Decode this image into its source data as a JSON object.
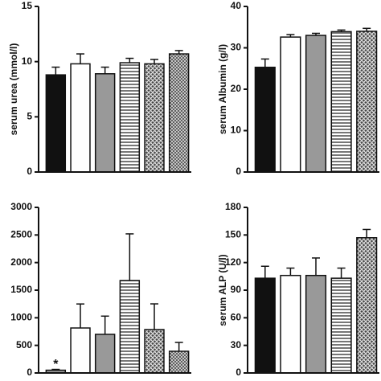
{
  "chart_data": [
    {
      "type": "bar",
      "ylabel": "serum urea (mmol/l)",
      "categories": [
        null,
        null,
        null,
        null,
        null,
        null
      ],
      "values": [
        8.8,
        9.8,
        8.9,
        9.9,
        9.8,
        10.7
      ],
      "errors": [
        0.7,
        0.9,
        0.6,
        0.4,
        0.4,
        0.3
      ],
      "colors": [
        "black",
        "white",
        "gray",
        "hatch-horizontal",
        "hatch-cross",
        "hatch-fine"
      ],
      "ylim": [
        0,
        15
      ],
      "yticks": [
        0,
        5,
        10,
        15
      ]
    },
    {
      "type": "bar",
      "ylabel": "serum Albumin (g/l)",
      "categories": [
        null,
        null,
        null,
        null,
        null
      ],
      "values": [
        25.3,
        32.6,
        33.0,
        33.9,
        34.0
      ],
      "errors": [
        2.0,
        0.6,
        0.5,
        0.4,
        0.7
      ],
      "colors": [
        "black",
        "white",
        "gray",
        "hatch-horizontal",
        "hatch-cross"
      ],
      "ylim": [
        0,
        40
      ],
      "yticks": [
        0,
        10,
        20,
        30,
        40
      ]
    },
    {
      "type": "bar",
      "categories": [
        null,
        null,
        null,
        null,
        null,
        null
      ],
      "values": [
        50,
        815,
        700,
        1675,
        786,
        393
      ],
      "errors": [
        15,
        435,
        330,
        845,
        466,
        160
      ],
      "colors": [
        "gray",
        "white",
        "gray",
        "hatch-horizontal",
        "hatch-cross",
        "hatch-fine"
      ],
      "annotation": "*",
      "ylim": [
        0,
        3000
      ],
      "yticks": [
        0,
        500,
        1000,
        1500,
        2000,
        2500,
        3000
      ]
    },
    {
      "type": "bar",
      "ylabel": "serum ALP (U/l)",
      "categories": [
        null,
        null,
        null,
        null,
        null
      ],
      "values": [
        103,
        106,
        106,
        103,
        147
      ],
      "errors": [
        13,
        8,
        19,
        11,
        9
      ],
      "colors": [
        "black",
        "white",
        "gray",
        "hatch-horizontal",
        "hatch-cross"
      ],
      "ylim": [
        0,
        180
      ],
      "yticks": [
        0,
        30,
        60,
        90,
        120,
        150,
        180
      ]
    }
  ]
}
